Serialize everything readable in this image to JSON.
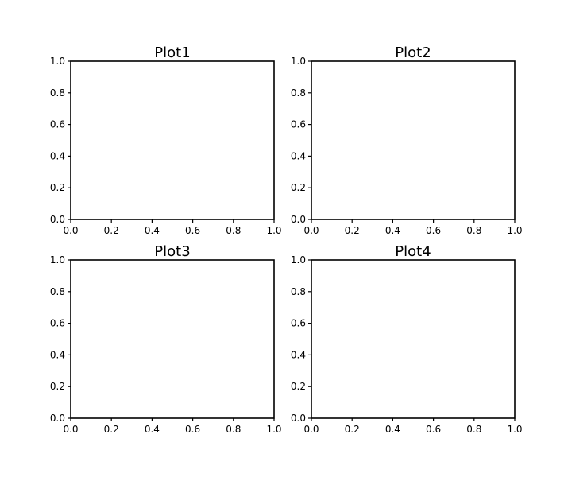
{
  "figure": {
    "background": "#ffffff",
    "axis_color": "#000000"
  },
  "chart_data": [
    {
      "type": "line",
      "title": "Plot1",
      "xlabel": "",
      "ylabel": "",
      "xlim": [
        0,
        1
      ],
      "ylim": [
        0,
        1
      ],
      "xticks": [
        "0.0",
        "0.2",
        "0.4",
        "0.6",
        "0.8",
        "1.0"
      ],
      "yticks": [
        "0.0",
        "0.2",
        "0.4",
        "0.6",
        "0.8",
        "1.0"
      ],
      "grid": false,
      "series": []
    },
    {
      "type": "line",
      "title": "Plot2",
      "xlabel": "",
      "ylabel": "",
      "xlim": [
        0,
        1
      ],
      "ylim": [
        0,
        1
      ],
      "xticks": [
        "0.0",
        "0.2",
        "0.4",
        "0.6",
        "0.8",
        "1.0"
      ],
      "yticks": [
        "0.0",
        "0.2",
        "0.4",
        "0.6",
        "0.8",
        "1.0"
      ],
      "grid": false,
      "series": []
    },
    {
      "type": "line",
      "title": "Plot3",
      "xlabel": "",
      "ylabel": "",
      "xlim": [
        0,
        1
      ],
      "ylim": [
        0,
        1
      ],
      "xticks": [
        "0.0",
        "0.2",
        "0.4",
        "0.6",
        "0.8",
        "1.0"
      ],
      "yticks": [
        "0.0",
        "0.2",
        "0.4",
        "0.6",
        "0.8",
        "1.0"
      ],
      "grid": false,
      "series": []
    },
    {
      "type": "line",
      "title": "Plot4",
      "xlabel": "",
      "ylabel": "",
      "xlim": [
        0,
        1
      ],
      "ylim": [
        0,
        1
      ],
      "xticks": [
        "0.0",
        "0.2",
        "0.4",
        "0.6",
        "0.8",
        "1.0"
      ],
      "yticks": [
        "0.0",
        "0.2",
        "0.4",
        "0.6",
        "0.8",
        "1.0"
      ],
      "grid": false,
      "series": []
    }
  ]
}
